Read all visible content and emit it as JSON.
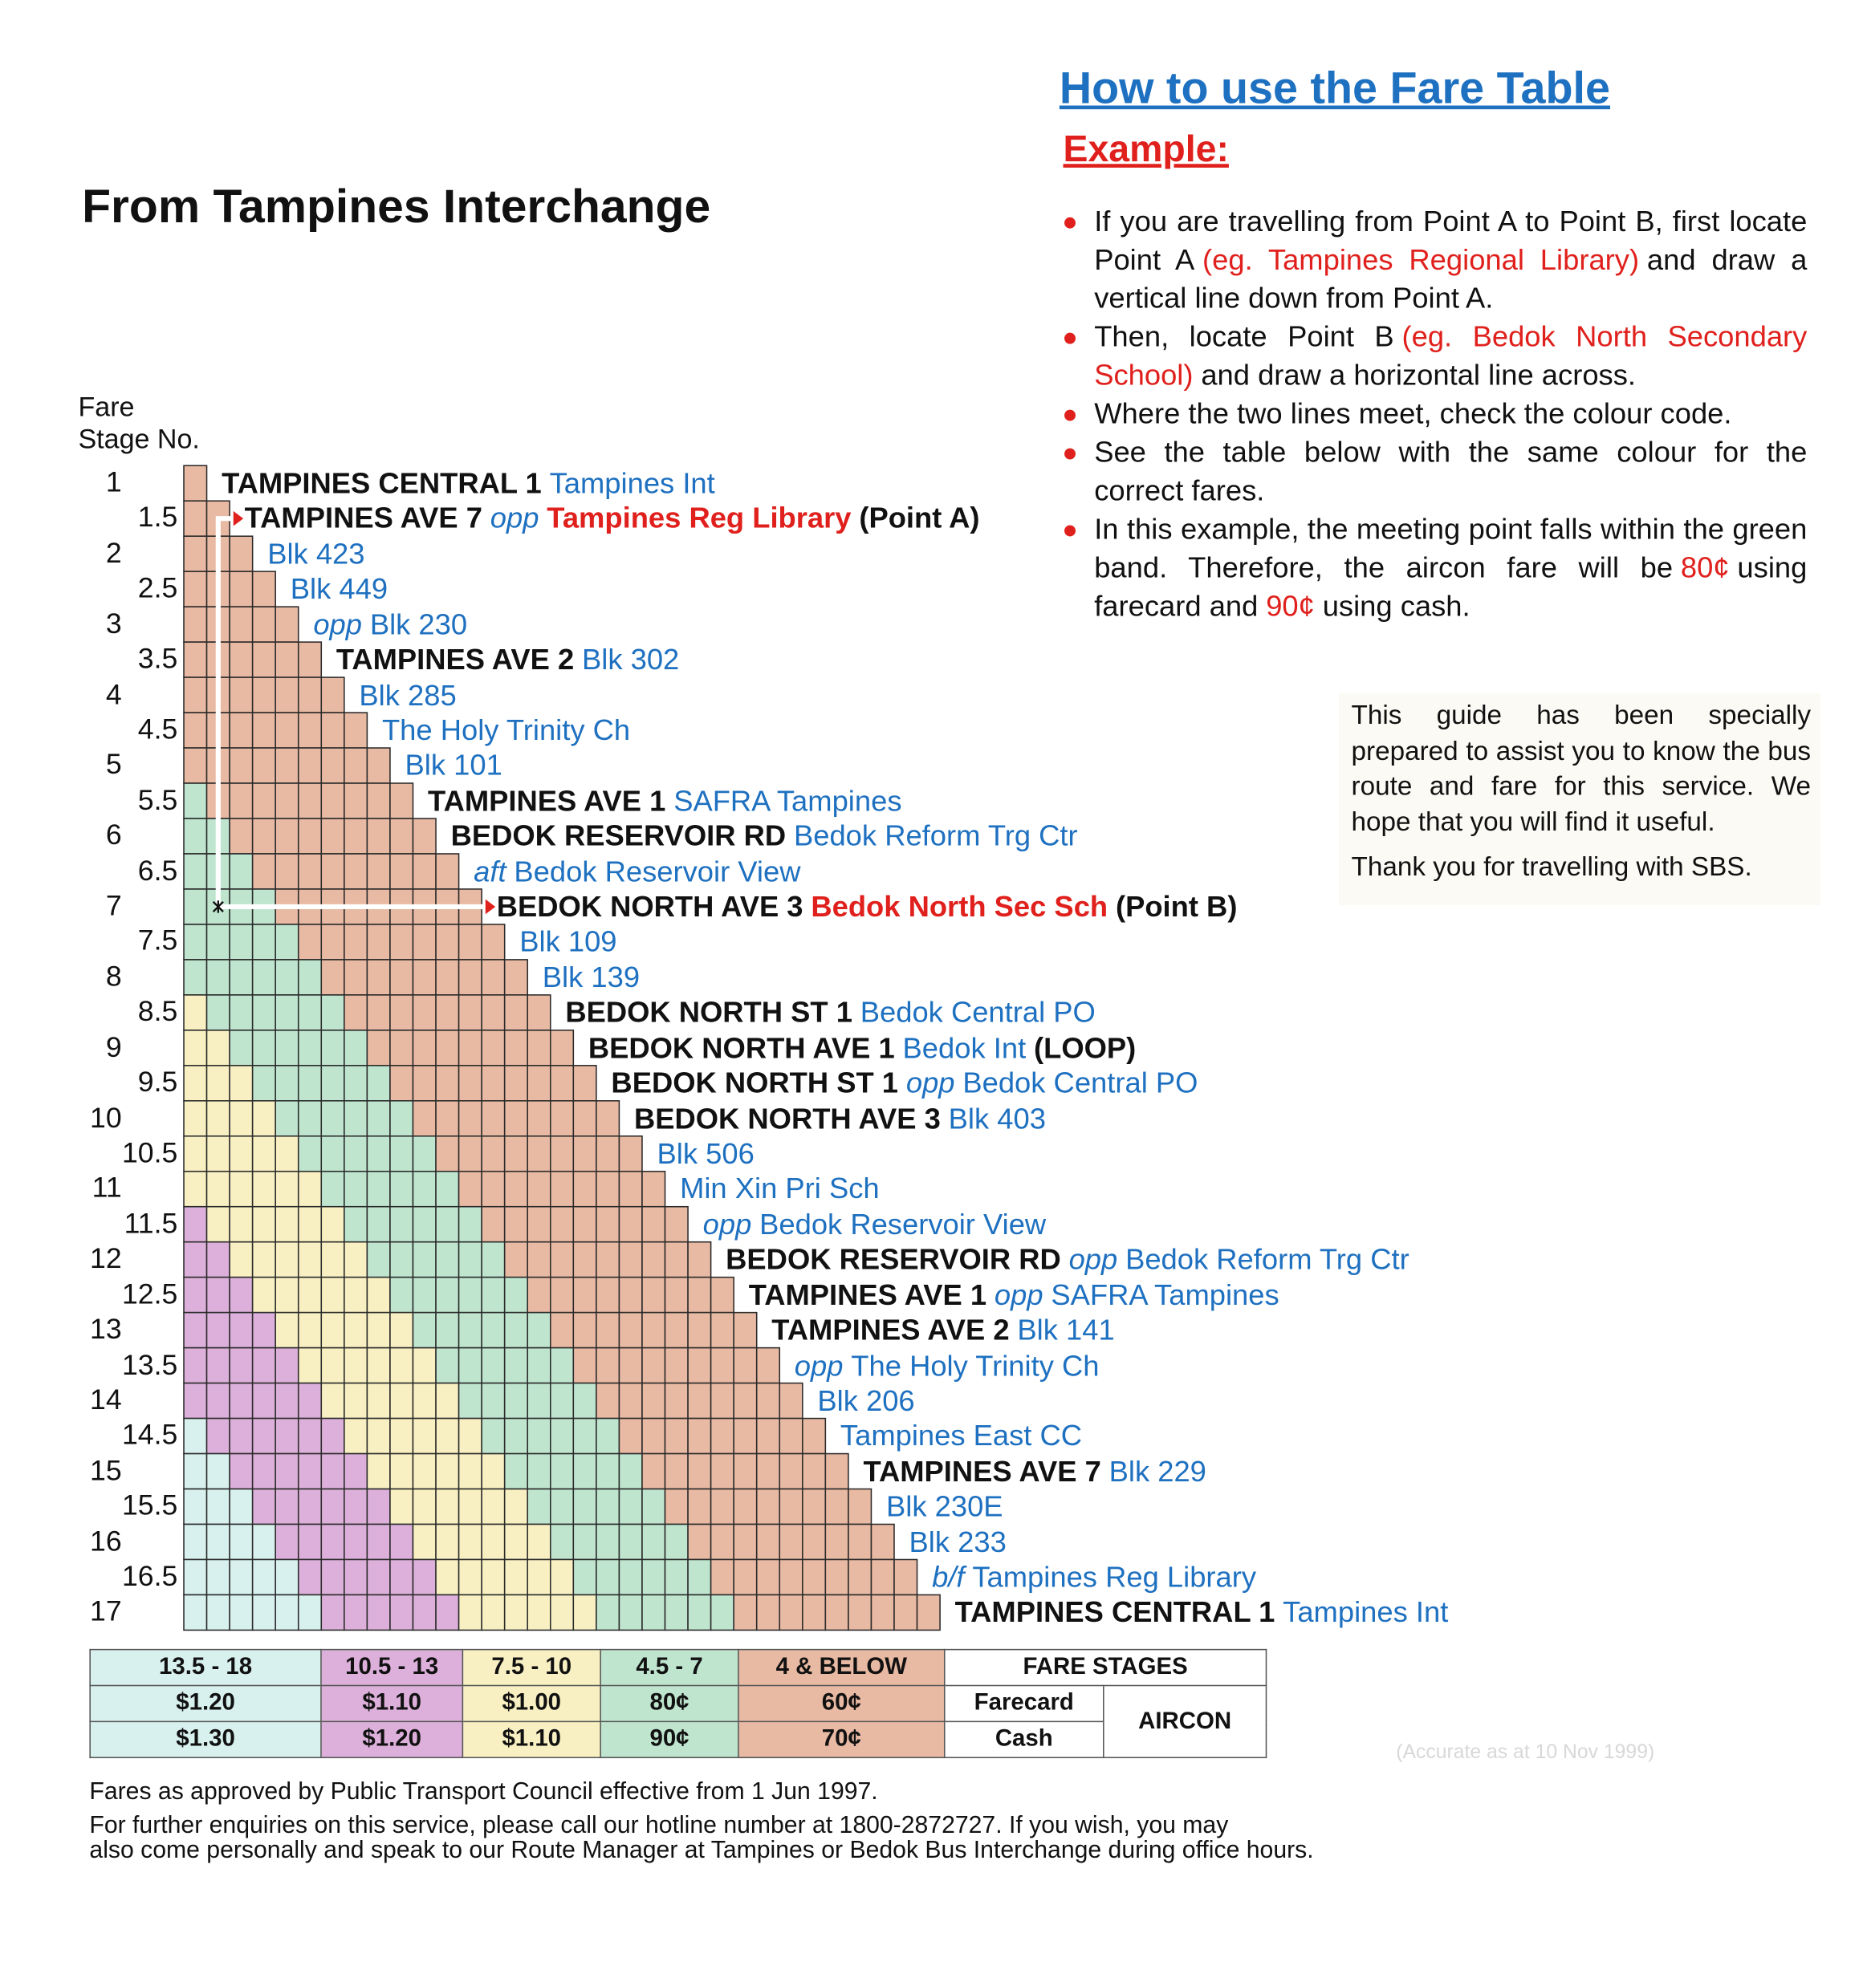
{
  "title": "From Tampines Interchange",
  "stage_heading": {
    "line1": "Fare",
    "line2": "Stage No."
  },
  "stops": [
    {
      "stage": "1",
      "label": [
        {
          "text": "TAMPINES CENTRAL 1",
          "style": "road"
        },
        {
          "text": "Tampines Int",
          "style": "place"
        }
      ]
    },
    {
      "stage": "1.5",
      "label": [
        {
          "text": "TAMPINES AVE 7",
          "style": "road"
        },
        {
          "text": "opp",
          "style": "prefix"
        },
        {
          "text": "Tampines Reg Library",
          "style": "target"
        },
        {
          "text": "(Point A)",
          "style": "point"
        }
      ]
    },
    {
      "stage": "2",
      "label": [
        {
          "text": "Blk 423",
          "style": "place"
        }
      ]
    },
    {
      "stage": "2.5",
      "label": [
        {
          "text": "Blk 449",
          "style": "place"
        }
      ]
    },
    {
      "stage": "3",
      "label": [
        {
          "text": "opp",
          "style": "prefix"
        },
        {
          "text": "Blk 230",
          "style": "place"
        }
      ]
    },
    {
      "stage": "3.5",
      "label": [
        {
          "text": "TAMPINES AVE 2",
          "style": "road"
        },
        {
          "text": "Blk 302",
          "style": "place"
        }
      ]
    },
    {
      "stage": "4",
      "label": [
        {
          "text": "Blk 285",
          "style": "place"
        }
      ]
    },
    {
      "stage": "4.5",
      "label": [
        {
          "text": "The Holy Trinity Ch",
          "style": "place"
        }
      ]
    },
    {
      "stage": "5",
      "label": [
        {
          "text": "Blk 101",
          "style": "place"
        }
      ]
    },
    {
      "stage": "5.5",
      "label": [
        {
          "text": "TAMPINES AVE 1",
          "style": "road"
        },
        {
          "text": "SAFRA Tampines",
          "style": "place"
        }
      ]
    },
    {
      "stage": "6",
      "label": [
        {
          "text": "BEDOK RESERVOIR RD",
          "style": "road"
        },
        {
          "text": "Bedok Reform Trg Ctr",
          "style": "place"
        }
      ]
    },
    {
      "stage": "6.5",
      "label": [
        {
          "text": "aft",
          "style": "prefix"
        },
        {
          "text": "Bedok Reservoir View",
          "style": "place"
        }
      ]
    },
    {
      "stage": "7",
      "label": [
        {
          "text": "BEDOK NORTH AVE 3",
          "style": "road"
        },
        {
          "text": "Bedok North Sec Sch",
          "style": "target"
        },
        {
          "text": "(Point B)",
          "style": "point"
        }
      ]
    },
    {
      "stage": "7.5",
      "label": [
        {
          "text": "Blk 109",
          "style": "place"
        }
      ]
    },
    {
      "stage": "8",
      "label": [
        {
          "text": "Blk 139",
          "style": "place"
        }
      ]
    },
    {
      "stage": "8.5",
      "label": [
        {
          "text": "BEDOK NORTH ST 1",
          "style": "road"
        },
        {
          "text": "Bedok Central PO",
          "style": "place"
        }
      ]
    },
    {
      "stage": "9",
      "label": [
        {
          "text": "BEDOK NORTH AVE 1",
          "style": "road"
        },
        {
          "text": "Bedok Int",
          "style": "place"
        },
        {
          "text": "(LOOP)",
          "style": "road"
        }
      ]
    },
    {
      "stage": "9.5",
      "label": [
        {
          "text": "BEDOK NORTH ST 1",
          "style": "road"
        },
        {
          "text": "opp",
          "style": "prefix"
        },
        {
          "text": "Bedok Central PO",
          "style": "place"
        }
      ]
    },
    {
      "stage": "10",
      "label": [
        {
          "text": "BEDOK NORTH AVE 3",
          "style": "road"
        },
        {
          "text": "Blk 403",
          "style": "place"
        }
      ]
    },
    {
      "stage": "10.5",
      "label": [
        {
          "text": "Blk 506",
          "style": "place"
        }
      ]
    },
    {
      "stage": "11",
      "label": [
        {
          "text": "Min Xin Pri Sch",
          "style": "place"
        }
      ]
    },
    {
      "stage": "11.5",
      "label": [
        {
          "text": "opp",
          "style": "prefix"
        },
        {
          "text": "Bedok Reservoir View",
          "style": "place"
        }
      ]
    },
    {
      "stage": "12",
      "label": [
        {
          "text": "BEDOK RESERVOIR RD",
          "style": "road"
        },
        {
          "text": "opp",
          "style": "prefix"
        },
        {
          "text": "Bedok Reform Trg Ctr",
          "style": "place"
        }
      ]
    },
    {
      "stage": "12.5",
      "label": [
        {
          "text": "TAMPINES AVE 1",
          "style": "road"
        },
        {
          "text": "opp",
          "style": "prefix"
        },
        {
          "text": "SAFRA Tampines",
          "style": "place"
        }
      ]
    },
    {
      "stage": "13",
      "label": [
        {
          "text": "TAMPINES AVE 2",
          "style": "road"
        },
        {
          "text": "Blk 141",
          "style": "place"
        }
      ]
    },
    {
      "stage": "13.5",
      "label": [
        {
          "text": "opp",
          "style": "prefix"
        },
        {
          "text": "The Holy Trinity Ch",
          "style": "place"
        }
      ]
    },
    {
      "stage": "14",
      "label": [
        {
          "text": "Blk 206",
          "style": "place"
        }
      ]
    },
    {
      "stage": "14.5",
      "label": [
        {
          "text": "Tampines East CC",
          "style": "place"
        }
      ]
    },
    {
      "stage": "15",
      "label": [
        {
          "text": "TAMPINES AVE 7",
          "style": "road"
        },
        {
          "text": "Blk 229",
          "style": "place"
        }
      ]
    },
    {
      "stage": "15.5",
      "label": [
        {
          "text": "Blk 230E",
          "style": "place"
        }
      ]
    },
    {
      "stage": "16",
      "label": [
        {
          "text": "Blk 233",
          "style": "place"
        }
      ]
    },
    {
      "stage": "16.5",
      "label": [
        {
          "text": "b/f",
          "style": "prefix"
        },
        {
          "text": "Tampines Reg Library",
          "style": "place"
        }
      ]
    },
    {
      "stage": "17",
      "label": [
        {
          "text": "TAMPINES CENTRAL 1",
          "style": "road"
        },
        {
          "text": "Tampines Int",
          "style": "place"
        }
      ]
    }
  ],
  "guide": {
    "title": "How to use the Fare Table",
    "subtitle": "Example:",
    "bullets": [
      [
        {
          "text": "If you are travelling from Point A to Point B, first locate Point A",
          "style": "plain"
        },
        {
          "text": "(eg. Tampines Regional Library)",
          "style": "red"
        },
        {
          "text": "and draw a vertical line down from Point A.",
          "style": "plain"
        }
      ],
      [
        {
          "text": "Then, locate Point B",
          "style": "plain"
        },
        {
          "text": "(eg. Bedok North Secondary School)",
          "style": "red"
        },
        {
          "text": "and draw a horizontal line across.",
          "style": "plain"
        }
      ],
      [
        {
          "text": "Where the two lines meet, check the colour code.",
          "style": "plain"
        }
      ],
      [
        {
          "text": "See the table below with the same colour for the correct fares.",
          "style": "plain"
        }
      ],
      [
        {
          "text": "In this example, the meeting point falls within the green band.  Therefore, the aircon fare will be",
          "style": "plain"
        },
        {
          "text": "80¢",
          "style": "red"
        },
        {
          "text": "using farecard and",
          "style": "plain"
        },
        {
          "text": "90¢",
          "style": "red"
        },
        {
          "text": "using cash.",
          "style": "plain"
        }
      ]
    ]
  },
  "note": [
    "This guide has been specially prepared to assist you to know the bus route and fare for this service. We hope that you will find it useful.",
    "Thank you for travelling with SBS."
  ],
  "fare_table": {
    "bands": [
      {
        "stages": "13.5 - 18",
        "color": "#d8f1ee",
        "farecard": "$1.20",
        "cash": "$1.30"
      },
      {
        "stages": "10.5 - 13",
        "color": "#dcb0da",
        "farecard": "$1.10",
        "cash": "$1.20"
      },
      {
        "stages": "7.5 - 10",
        "color": "#f8f0c2",
        "farecard": "$1.00",
        "cash": "$1.10"
      },
      {
        "stages": "4.5 - 7",
        "color": "#bfe5cf",
        "farecard": "80¢",
        "cash": "90¢"
      },
      {
        "stages": "4 & BELOW",
        "color": "#e8b9a3",
        "farecard": "60¢",
        "cash": "70¢"
      }
    ],
    "stages_header": "FARE STAGES",
    "farecard_label": "Farecard",
    "cash_label": "Cash",
    "aircon": "AIRCON"
  },
  "accuracy": "(Accurate as at 10 Nov 1999)",
  "footer": [
    "Fares as approved by Public Transport Council effective from 1 Jun 1997.",
    "For further enquiries on this service, please call our hotline number at 1800-2872727.  If you wish, you may",
    "also come personally and speak to our Route Manager at Tampines or Bedok Bus Interchange during office hours."
  ]
}
